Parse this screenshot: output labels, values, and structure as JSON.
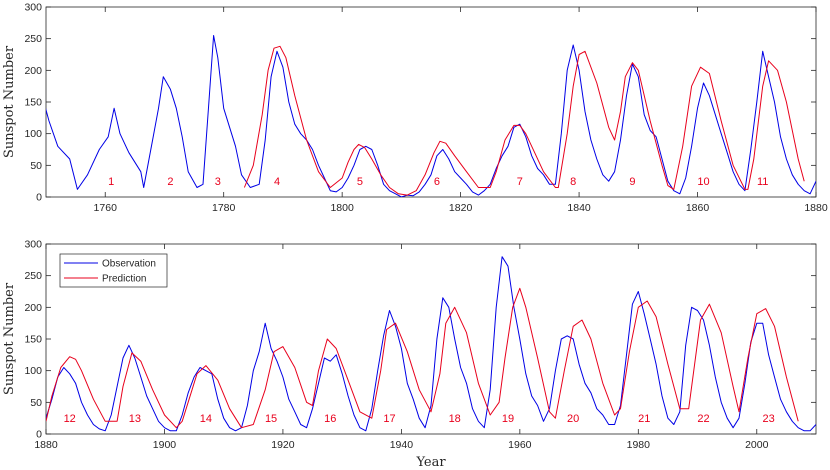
{
  "chart_data": [
    {
      "type": "line",
      "panel": "top",
      "xlim": [
        1750,
        1880
      ],
      "ylim": [
        0,
        300
      ],
      "xticks": [
        1760,
        1780,
        1800,
        1820,
        1840,
        1860,
        1880
      ],
      "yticks": [
        0,
        50,
        100,
        150,
        200,
        250,
        300
      ],
      "xlabel": "",
      "ylabel": "Sunspot Number",
      "series": [
        {
          "name": "Observation",
          "color": "#0000e6",
          "x": [
            1749.5,
            1750.5,
            1752,
            1754,
            1755.3,
            1757,
            1759,
            1760.5,
            1761.5,
            1762.5,
            1764,
            1766,
            1766.5,
            1768,
            1769,
            1769.8,
            1771,
            1772,
            1773,
            1774,
            1775.5,
            1776.5,
            1777.5,
            1778.3,
            1779,
            1780,
            1781,
            1782,
            1783,
            1784.5,
            1786,
            1787,
            1788,
            1789,
            1790,
            1791,
            1792,
            1793,
            1794,
            1795,
            1796,
            1797,
            1798,
            1799,
            1800,
            1801,
            1802,
            1803,
            1804,
            1805,
            1806,
            1807,
            1808,
            1809,
            1810,
            1811,
            1812,
            1813,
            1814,
            1815,
            1816,
            1817,
            1818,
            1819,
            1820,
            1821,
            1822,
            1823,
            1824,
            1825,
            1826,
            1827,
            1828,
            1829,
            1830,
            1831,
            1832,
            1833,
            1834,
            1835,
            1836,
            1837,
            1838,
            1839,
            1840,
            1841,
            1842,
            1843,
            1844,
            1845,
            1846,
            1847,
            1848,
            1849,
            1850,
            1851,
            1852,
            1853,
            1854,
            1855,
            1856,
            1857,
            1858,
            1859,
            1860,
            1861,
            1862,
            1863,
            1864,
            1865,
            1866,
            1867,
            1868,
            1869,
            1870,
            1871,
            1872,
            1873,
            1874,
            1875,
            1876,
            1877,
            1878,
            1879,
            1880
          ],
          "y": [
            155,
            120,
            80,
            60,
            12,
            35,
            75,
            95,
            140,
            100,
            70,
            40,
            15,
            90,
            140,
            190,
            170,
            140,
            95,
            40,
            15,
            20,
            150,
            255,
            220,
            140,
            110,
            80,
            35,
            15,
            20,
            90,
            190,
            230,
            205,
            150,
            115,
            100,
            90,
            75,
            50,
            30,
            10,
            8,
            15,
            30,
            50,
            75,
            80,
            75,
            50,
            20,
            10,
            5,
            0,
            3,
            2,
            8,
            20,
            35,
            65,
            75,
            60,
            40,
            30,
            20,
            8,
            3,
            10,
            20,
            45,
            65,
            80,
            110,
            115,
            95,
            65,
            45,
            35,
            20,
            20,
            100,
            200,
            240,
            200,
            135,
            90,
            60,
            35,
            25,
            40,
            90,
            160,
            210,
            190,
            130,
            105,
            95,
            60,
            25,
            10,
            5,
            30,
            80,
            140,
            180,
            160,
            130,
            100,
            70,
            40,
            20,
            10,
            75,
            150,
            230,
            190,
            150,
            95,
            60,
            35,
            20,
            10,
            5,
            25
          ]
        },
        {
          "name": "Prediction",
          "color": "#e8001c",
          "x": [
            1783.5,
            1785,
            1786.5,
            1787.5,
            1788.5,
            1789.5,
            1790.5,
            1792,
            1794,
            1796,
            1798,
            1800,
            1801,
            1802,
            1802.8,
            1803.8,
            1805,
            1806.5,
            1808,
            1809.5,
            1811,
            1812.5,
            1814,
            1815.5,
            1816.5,
            1817.5,
            1819,
            1821,
            1823,
            1825,
            1826,
            1827.5,
            1829,
            1830,
            1831,
            1832.5,
            1834,
            1836,
            1836.5,
            1838,
            1839,
            1840,
            1841,
            1843,
            1845,
            1846,
            1847,
            1847.8,
            1849,
            1850,
            1852,
            1854,
            1855,
            1856,
            1857.5,
            1859,
            1860.5,
            1862,
            1864,
            1866,
            1868,
            1868.5,
            1869.5,
            1871,
            1872,
            1873.5,
            1875,
            1877,
            1878
          ],
          "y": [
            15,
            50,
            130,
            200,
            235,
            238,
            220,
            160,
            90,
            40,
            15,
            30,
            55,
            75,
            83,
            78,
            60,
            35,
            15,
            5,
            3,
            10,
            35,
            70,
            88,
            85,
            65,
            40,
            15,
            15,
            40,
            90,
            113,
            113,
            100,
            70,
            40,
            15,
            15,
            100,
            175,
            225,
            230,
            180,
            110,
            90,
            135,
            190,
            212,
            200,
            120,
            50,
            18,
            12,
            80,
            175,
            205,
            195,
            120,
            50,
            12,
            12,
            60,
            175,
            215,
            200,
            150,
            60,
            25
          ]
        }
      ],
      "annotations": [
        "1",
        "2",
        "3",
        "4",
        "5",
        "6",
        "7",
        "8",
        "9",
        "10",
        "11"
      ],
      "annotation_x": [
        1761,
        1771,
        1779,
        1789,
        1803,
        1816,
        1830,
        1839,
        1849,
        1861,
        1871
      ]
    },
    {
      "type": "line",
      "panel": "bottom",
      "xlim": [
        1880,
        2010
      ],
      "ylim": [
        0,
        300
      ],
      "xticks": [
        1880,
        1900,
        1920,
        1940,
        1960,
        1980,
        2000
      ],
      "yticks": [
        0,
        50,
        100,
        150,
        200,
        250,
        300
      ],
      "xlabel": "Year",
      "ylabel": "Sunspot Number",
      "legend": {
        "position": "top-left",
        "entries": [
          "Observation",
          "Prediction"
        ]
      },
      "series": [
        {
          "name": "Observation",
          "color": "#0000e6",
          "x": [
            1880,
            1881,
            1882,
            1883,
            1884,
            1885,
            1886,
            1887,
            1888,
            1889,
            1890,
            1891,
            1892,
            1893,
            1894,
            1895,
            1896,
            1897,
            1898,
            1899,
            1900,
            1901,
            1902,
            1903,
            1904,
            1905,
            1906,
            1907,
            1908,
            1909,
            1910,
            1911,
            1912,
            1913,
            1914,
            1915,
            1916,
            1917,
            1918,
            1919,
            1920,
            1921,
            1922,
            1923,
            1924,
            1925,
            1926,
            1927,
            1928,
            1929,
            1930,
            1931,
            1932,
            1933,
            1934,
            1935,
            1936,
            1937,
            1938,
            1939,
            1940,
            1941,
            1942,
            1943,
            1944,
            1945,
            1946,
            1947,
            1948,
            1949,
            1950,
            1951,
            1952,
            1953,
            1954,
            1955,
            1956,
            1957,
            1958,
            1959,
            1960,
            1961,
            1962,
            1963,
            1964,
            1965,
            1966,
            1967,
            1968,
            1969,
            1970,
            1971,
            1972,
            1973,
            1974,
            1975,
            1976,
            1977,
            1978,
            1979,
            1980,
            1981,
            1982,
            1983,
            1984,
            1985,
            1986,
            1987,
            1988,
            1989,
            1990,
            1991,
            1992,
            1993,
            1994,
            1995,
            1996,
            1997,
            1998,
            1999,
            2000,
            2001,
            2002,
            2003,
            2004,
            2005,
            2006,
            2007,
            2008,
            2009,
            2010
          ],
          "y": [
            25,
            55,
            90,
            105,
            95,
            80,
            50,
            30,
            15,
            8,
            5,
            30,
            75,
            120,
            140,
            120,
            90,
            60,
            40,
            20,
            10,
            5,
            5,
            30,
            65,
            90,
            105,
            100,
            95,
            55,
            25,
            10,
            5,
            10,
            45,
            100,
            130,
            175,
            135,
            115,
            90,
            55,
            35,
            15,
            10,
            40,
            80,
            120,
            115,
            125,
            95,
            60,
            30,
            10,
            5,
            40,
            100,
            155,
            195,
            170,
            135,
            80,
            55,
            25,
            10,
            45,
            150,
            215,
            200,
            150,
            105,
            80,
            40,
            20,
            10,
            70,
            200,
            280,
            265,
            200,
            150,
            95,
            60,
            45,
            20,
            40,
            100,
            150,
            155,
            150,
            110,
            80,
            65,
            40,
            30,
            15,
            15,
            45,
            125,
            205,
            225,
            190,
            150,
            110,
            60,
            25,
            15,
            35,
            140,
            200,
            195,
            180,
            140,
            90,
            50,
            25,
            10,
            25,
            80,
            145,
            175,
            175,
            125,
            90,
            55,
            35,
            20,
            10,
            5,
            5,
            15
          ]
        },
        {
          "name": "Prediction",
          "color": "#e8001c",
          "x": [
            1880,
            1881,
            1882.5,
            1884,
            1885,
            1886,
            1888,
            1890,
            1892,
            1893,
            1894.5,
            1896,
            1898,
            1900,
            1902,
            1903,
            1904.5,
            1905.5,
            1907,
            1909,
            1911,
            1913,
            1915,
            1917,
            1918.5,
            1920,
            1922,
            1924,
            1925,
            1926,
            1927.5,
            1929,
            1931,
            1933,
            1935,
            1936.5,
            1937.5,
            1939,
            1941,
            1943,
            1945,
            1946.5,
            1947.5,
            1949,
            1951,
            1953,
            1955,
            1956.5,
            1957.5,
            1958.8,
            1960,
            1961,
            1963,
            1965,
            1966,
            1967.5,
            1969,
            1970.5,
            1972,
            1974,
            1976,
            1977,
            1978.5,
            1980,
            1981.5,
            1983,
            1985,
            1987,
            1988.5,
            1990.5,
            1992,
            1994,
            1996,
            1997,
            1998.5,
            2000,
            2001.5,
            2003,
            2005,
            2007
          ],
          "y": [
            20,
            60,
            105,
            122,
            118,
            100,
            55,
            20,
            20,
            75,
            128,
            115,
            70,
            30,
            10,
            20,
            65,
            95,
            108,
            85,
            40,
            10,
            15,
            70,
            130,
            138,
            105,
            50,
            45,
            100,
            150,
            135,
            85,
            35,
            25,
            100,
            165,
            175,
            130,
            70,
            35,
            95,
            175,
            200,
            160,
            80,
            30,
            50,
            120,
            200,
            230,
            200,
            120,
            35,
            25,
            100,
            170,
            180,
            150,
            80,
            30,
            40,
            130,
            200,
            210,
            185,
            110,
            40,
            40,
            180,
            205,
            160,
            75,
            35,
            120,
            190,
            198,
            170,
            90,
            20
          ]
        }
      ],
      "annotations": [
        "12",
        "13",
        "14",
        "15",
        "16",
        "17",
        "18",
        "19",
        "20",
        "21",
        "22",
        "23"
      ],
      "annotation_x": [
        1884,
        1895,
        1907,
        1918,
        1928,
        1938,
        1949,
        1958,
        1969,
        1981,
        1991,
        2002
      ]
    }
  ]
}
